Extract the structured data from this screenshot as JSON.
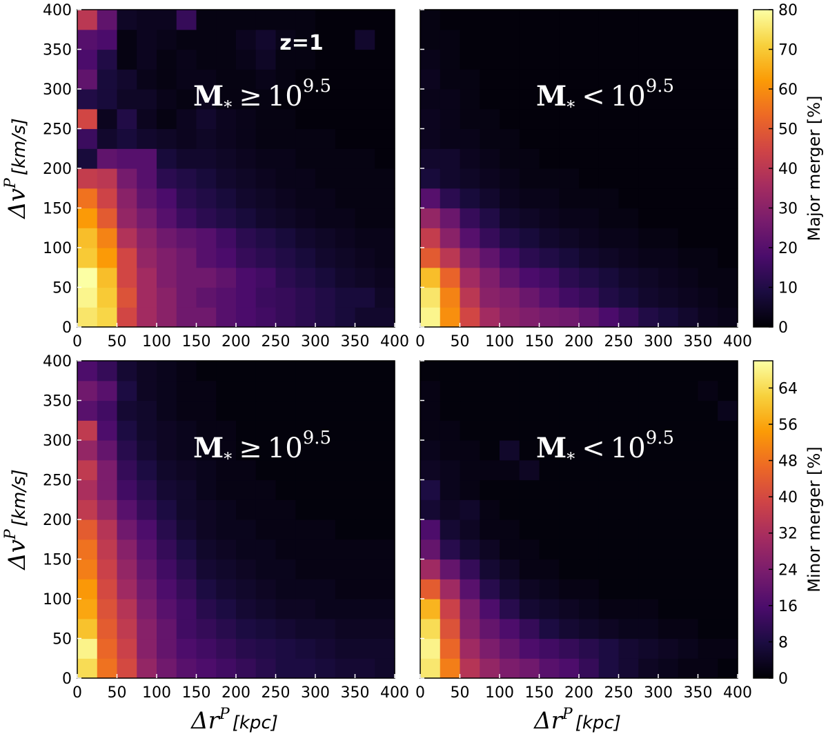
{
  "figure_annotation": "z=1",
  "chart_data": [
    {
      "type": "heatmap",
      "id": "top-left",
      "panel_label": {
        "main": "M",
        "sub": "*",
        "relation": "≥",
        "base": "10",
        "exponent": "9.5"
      },
      "xlim": [
        0,
        400
      ],
      "ylim": [
        0,
        400
      ],
      "xticks": [
        "0",
        "50",
        "100",
        "150",
        "200",
        "250",
        "300",
        "350",
        "400"
      ],
      "yticks": [
        "0",
        "50",
        "100",
        "150",
        "200",
        "250",
        "300",
        "350",
        "400"
      ],
      "ylabel": {
        "symbol": "Δv",
        "sup": "P",
        "unit": "[km/s]"
      },
      "xlabel": null,
      "bin_size": 25,
      "values": [
        [
          75,
          72,
          45,
          35,
          30,
          25,
          25,
          20,
          18,
          16,
          14,
          12,
          10,
          8,
          6,
          6
        ],
        [
          78,
          70,
          48,
          35,
          30,
          25,
          22,
          20,
          18,
          15,
          14,
          12,
          10,
          8,
          8,
          5
        ],
        [
          80,
          68,
          45,
          35,
          28,
          25,
          25,
          22,
          18,
          16,
          12,
          10,
          8,
          6,
          5,
          4
        ],
        [
          70,
          62,
          45,
          32,
          28,
          25,
          20,
          18,
          14,
          12,
          10,
          8,
          6,
          5,
          4,
          3
        ],
        [
          68,
          58,
          38,
          30,
          25,
          22,
          20,
          16,
          12,
          10,
          8,
          6,
          5,
          4,
          3,
          3
        ],
        [
          62,
          50,
          32,
          26,
          20,
          15,
          12,
          10,
          8,
          6,
          5,
          4,
          3,
          3,
          2,
          2
        ],
        [
          55,
          44,
          30,
          22,
          18,
          12,
          10,
          8,
          6,
          5,
          4,
          3,
          3,
          2,
          2,
          2
        ],
        [
          42,
          40,
          26,
          20,
          12,
          10,
          8,
          6,
          5,
          4,
          3,
          3,
          2,
          2,
          2,
          2
        ],
        [
          8,
          22,
          20,
          20,
          8,
          6,
          6,
          5,
          4,
          3,
          3,
          2,
          2,
          2,
          2,
          1
        ],
        [
          15,
          6,
          8,
          6,
          5,
          4,
          5,
          4,
          3,
          2,
          2,
          2,
          2,
          1,
          1,
          1
        ],
        [
          45,
          4,
          10,
          4,
          2,
          4,
          6,
          4,
          3,
          2,
          2,
          1,
          1,
          1,
          1,
          1
        ],
        [
          10,
          8,
          5,
          5,
          3,
          2,
          4,
          2,
          2,
          2,
          1,
          1,
          1,
          1,
          1,
          1
        ],
        [
          22,
          8,
          6,
          3,
          2,
          3,
          3,
          2,
          2,
          3,
          2,
          1,
          1,
          1,
          1,
          1
        ],
        [
          18,
          10,
          2,
          4,
          2,
          3,
          2,
          2,
          3,
          5,
          2,
          2,
          1,
          1,
          1,
          1
        ],
        [
          20,
          18,
          2,
          4,
          3,
          2,
          2,
          2,
          4,
          6,
          3,
          2,
          1,
          1,
          6,
          1
        ],
        [
          40,
          22,
          5,
          4,
          4,
          14,
          2,
          2,
          2,
          2,
          2,
          2,
          1,
          1,
          1,
          1
        ]
      ]
    },
    {
      "type": "heatmap",
      "id": "top-right",
      "panel_label": {
        "main": "M",
        "sub": "*",
        "relation": "<",
        "base": "10",
        "exponent": "9.5"
      },
      "xlim": [
        0,
        400
      ],
      "ylim": [
        0,
        400
      ],
      "xticks": [
        "0",
        "50",
        "100",
        "150",
        "200",
        "250",
        "300",
        "350",
        "400"
      ],
      "yticks": [],
      "ylabel": null,
      "xlabel": null,
      "bin_size": 25,
      "values": [
        [
          78,
          60,
          45,
          35,
          30,
          28,
          26,
          25,
          22,
          18,
          14,
          10,
          8,
          6,
          4,
          3
        ],
        [
          75,
          58,
          40,
          30,
          28,
          24,
          20,
          16,
          14,
          10,
          8,
          6,
          5,
          4,
          3,
          2
        ],
        [
          68,
          52,
          35,
          28,
          22,
          18,
          16,
          12,
          10,
          8,
          6,
          5,
          4,
          3,
          2,
          2
        ],
        [
          50,
          40,
          28,
          22,
          16,
          12,
          10,
          8,
          6,
          5,
          4,
          3,
          3,
          2,
          2,
          1
        ],
        [
          42,
          30,
          20,
          14,
          10,
          8,
          6,
          5,
          4,
          3,
          3,
          2,
          2,
          1,
          1,
          1
        ],
        [
          32,
          24,
          14,
          10,
          6,
          5,
          4,
          3,
          3,
          2,
          2,
          1,
          1,
          1,
          1,
          1
        ],
        [
          20,
          12,
          8,
          6,
          4,
          3,
          3,
          2,
          2,
          2,
          1,
          1,
          1,
          1,
          1,
          1
        ],
        [
          8,
          6,
          5,
          4,
          3,
          2,
          2,
          2,
          1,
          1,
          1,
          1,
          1,
          1,
          1,
          1
        ],
        [
          6,
          6,
          4,
          3,
          2,
          2,
          1,
          1,
          1,
          1,
          1,
          1,
          1,
          1,
          1,
          1
        ],
        [
          4,
          3,
          3,
          2,
          2,
          1,
          1,
          1,
          1,
          1,
          1,
          1,
          1,
          1,
          1,
          1
        ],
        [
          4,
          3,
          2,
          2,
          1,
          1,
          1,
          1,
          1,
          1,
          1,
          1,
          1,
          1,
          1,
          1
        ],
        [
          3,
          3,
          2,
          1,
          1,
          1,
          1,
          1,
          1,
          1,
          1,
          1,
          1,
          1,
          1,
          1
        ],
        [
          4,
          2,
          2,
          1,
          1,
          1,
          1,
          1,
          1,
          1,
          1,
          1,
          1,
          1,
          1,
          1
        ],
        [
          3,
          2,
          1,
          1,
          1,
          1,
          1,
          1,
          1,
          1,
          1,
          1,
          1,
          1,
          1,
          1
        ],
        [
          2,
          2,
          1,
          1,
          1,
          1,
          1,
          1,
          1,
          1,
          1,
          1,
          1,
          1,
          1,
          1
        ],
        [
          2,
          1,
          1,
          1,
          1,
          1,
          1,
          1,
          1,
          1,
          1,
          1,
          1,
          1,
          1,
          1
        ]
      ]
    },
    {
      "type": "heatmap",
      "id": "bottom-left",
      "panel_label": {
        "main": "M",
        "sub": "*",
        "relation": "≥",
        "base": "10",
        "exponent": "9.5"
      },
      "xlim": [
        0,
        400
      ],
      "ylim": [
        0,
        400
      ],
      "xticks": [
        "0",
        "50",
        "100",
        "150",
        "200",
        "250",
        "300",
        "350",
        "400"
      ],
      "yticks": [
        "0",
        "50",
        "100",
        "150",
        "200",
        "250",
        "300",
        "350",
        "400"
      ],
      "ylabel": {
        "symbol": "Δv",
        "sup": "P",
        "unit": "[km/s]"
      },
      "xlabel": {
        "symbol": "Δr",
        "sup": "P",
        "unit": "[kpc]"
      },
      "bin_size": 25,
      "values": [
        [
          64,
          48,
          40,
          28,
          22,
          18,
          16,
          14,
          12,
          10,
          8,
          8,
          7,
          6,
          6,
          5
        ],
        [
          68,
          46,
          38,
          26,
          20,
          16,
          14,
          12,
          10,
          9,
          8,
          7,
          6,
          5,
          5,
          5
        ],
        [
          60,
          44,
          36,
          26,
          20,
          14,
          12,
          10,
          8,
          7,
          6,
          5,
          5,
          4,
          4,
          4
        ],
        [
          56,
          42,
          34,
          24,
          18,
          14,
          10,
          8,
          6,
          5,
          4,
          4,
          3,
          3,
          3,
          3
        ],
        [
          54,
          40,
          30,
          22,
          16,
          12,
          8,
          6,
          5,
          4,
          3,
          3,
          3,
          2,
          2,
          2
        ],
        [
          50,
          38,
          28,
          20,
          14,
          10,
          6,
          5,
          4,
          3,
          3,
          2,
          2,
          2,
          2,
          2
        ],
        [
          48,
          36,
          26,
          18,
          12,
          8,
          5,
          4,
          3,
          3,
          2,
          2,
          2,
          2,
          2,
          2
        ],
        [
          44,
          34,
          22,
          16,
          10,
          6,
          4,
          3,
          3,
          2,
          2,
          2,
          2,
          1,
          1,
          1
        ],
        [
          36,
          28,
          18,
          12,
          8,
          5,
          4,
          3,
          2,
          2,
          2,
          1,
          1,
          1,
          1,
          1
        ],
        [
          32,
          24,
          14,
          10,
          6,
          5,
          3,
          2,
          2,
          2,
          1,
          1,
          1,
          1,
          1,
          1
        ],
        [
          36,
          24,
          12,
          8,
          5,
          4,
          3,
          2,
          2,
          1,
          1,
          1,
          1,
          1,
          1,
          1
        ],
        [
          28,
          20,
          10,
          6,
          4,
          3,
          2,
          2,
          1,
          1,
          1,
          1,
          1,
          1,
          1,
          1
        ],
        [
          36,
          16,
          8,
          5,
          4,
          3,
          2,
          2,
          1,
          1,
          1,
          1,
          1,
          1,
          1,
          1
        ],
        [
          18,
          14,
          6,
          5,
          3,
          2,
          2,
          1,
          1,
          1,
          1,
          1,
          1,
          1,
          1,
          1
        ],
        [
          22,
          18,
          8,
          4,
          3,
          2,
          2,
          1,
          1,
          1,
          1,
          1,
          1,
          1,
          1,
          1
        ],
        [
          16,
          12,
          6,
          4,
          3,
          2,
          1,
          1,
          1,
          1,
          1,
          1,
          1,
          1,
          1,
          1
        ]
      ]
    },
    {
      "type": "heatmap",
      "id": "bottom-right",
      "panel_label": {
        "main": "M",
        "sub": "*",
        "relation": "<",
        "base": "10",
        "exponent": "9.5"
      },
      "xlim": [
        0,
        400
      ],
      "ylim": [
        0,
        400
      ],
      "xticks": [
        "0",
        "50",
        "100",
        "150",
        "200",
        "250",
        "300",
        "350",
        "400"
      ],
      "yticks": [],
      "ylabel": null,
      "xlabel": {
        "symbol": "Δr",
        "sup": "P",
        "unit": "[kpc]"
      },
      "bin_size": 25,
      "values": [
        [
          66,
          50,
          34,
          28,
          24,
          22,
          18,
          16,
          12,
          8,
          6,
          4,
          3,
          2,
          2,
          1
        ],
        [
          68,
          46,
          30,
          24,
          20,
          16,
          14,
          12,
          10,
          8,
          6,
          5,
          4,
          3,
          2,
          2
        ],
        [
          64,
          42,
          26,
          20,
          16,
          12,
          8,
          6,
          5,
          4,
          3,
          3,
          2,
          2,
          1,
          1
        ],
        [
          58,
          38,
          24,
          16,
          10,
          6,
          5,
          4,
          3,
          2,
          2,
          2,
          1,
          1,
          1,
          1
        ],
        [
          44,
          30,
          18,
          10,
          6,
          4,
          3,
          2,
          2,
          1,
          1,
          1,
          1,
          1,
          1,
          1
        ],
        [
          30,
          20,
          12,
          6,
          4,
          2,
          2,
          1,
          1,
          1,
          1,
          1,
          1,
          1,
          1,
          1
        ],
        [
          20,
          10,
          6,
          4,
          2,
          2,
          1,
          1,
          1,
          1,
          1,
          1,
          1,
          1,
          1,
          1
        ],
        [
          16,
          6,
          4,
          2,
          2,
          1,
          1,
          1,
          1,
          1,
          1,
          1,
          1,
          1,
          1,
          1
        ],
        [
          6,
          4,
          5,
          2,
          1,
          1,
          1,
          1,
          1,
          1,
          1,
          1,
          1,
          1,
          1,
          1
        ],
        [
          8,
          3,
          2,
          1,
          1,
          1,
          1,
          1,
          1,
          1,
          1,
          1,
          1,
          1,
          1,
          1
        ],
        [
          4,
          3,
          2,
          2,
          2,
          4,
          1,
          1,
          1,
          1,
          1,
          1,
          1,
          1,
          1,
          1
        ],
        [
          3,
          2,
          2,
          1,
          5,
          1,
          1,
          1,
          1,
          1,
          1,
          1,
          1,
          1,
          1,
          1
        ],
        [
          2,
          2,
          1,
          1,
          1,
          1,
          1,
          1,
          1,
          1,
          1,
          1,
          1,
          1,
          1,
          1
        ],
        [
          2,
          1,
          1,
          1,
          1,
          1,
          1,
          1,
          1,
          1,
          1,
          1,
          1,
          1,
          1,
          3
        ],
        [
          2,
          1,
          1,
          1,
          1,
          1,
          1,
          1,
          1,
          1,
          1,
          1,
          1,
          1,
          2,
          1
        ],
        [
          1,
          1,
          1,
          1,
          1,
          1,
          1,
          1,
          1,
          1,
          1,
          1,
          1,
          1,
          1,
          1
        ]
      ]
    }
  ],
  "colorbars": [
    {
      "id": "major",
      "label": "Major merger [%]",
      "range": [
        0,
        80
      ],
      "ticks": [
        "0",
        "10",
        "20",
        "30",
        "40",
        "50",
        "60",
        "70",
        "80"
      ]
    },
    {
      "id": "minor",
      "label": "Minor merger [%]",
      "range": [
        0,
        70
      ],
      "ticks": [
        "0",
        "8",
        "16",
        "24",
        "32",
        "40",
        "48",
        "56",
        "64"
      ]
    }
  ],
  "colormap": {
    "name": "inferno",
    "stops": [
      "#000004",
      "#1b0c41",
      "#4a0c6b",
      "#781c6d",
      "#a52c60",
      "#cf4446",
      "#ed6925",
      "#fb9b06",
      "#f7d13d",
      "#fcffa4"
    ]
  }
}
